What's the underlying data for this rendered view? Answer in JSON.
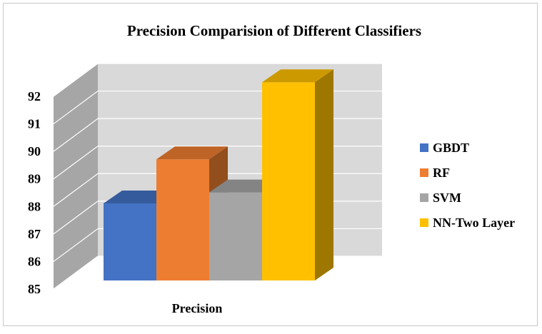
{
  "chart_data": {
    "type": "bar",
    "title": "Precision Comparision of Different Classifiers",
    "xlabel": "",
    "ylabel": "",
    "categories": [
      "Precision"
    ],
    "series": [
      {
        "name": "GBDT",
        "values": [
          87.8
        ],
        "color": "#4472C4"
      },
      {
        "name": "RF",
        "values": [
          89.4
        ],
        "color": "#ED7D31"
      },
      {
        "name": "SVM",
        "values": [
          88.2
        ],
        "color": "#A5A5A5"
      },
      {
        "name": "NN-Two Layer",
        "values": [
          92.2
        ],
        "color": "#FFC000"
      }
    ],
    "ylim": [
      85,
      92
    ],
    "yticks": [
      "85",
      "86",
      "87",
      "88",
      "89",
      "90",
      "91",
      "92"
    ],
    "grid": true,
    "legend_position": "right",
    "style": "3d-clustered-column"
  }
}
